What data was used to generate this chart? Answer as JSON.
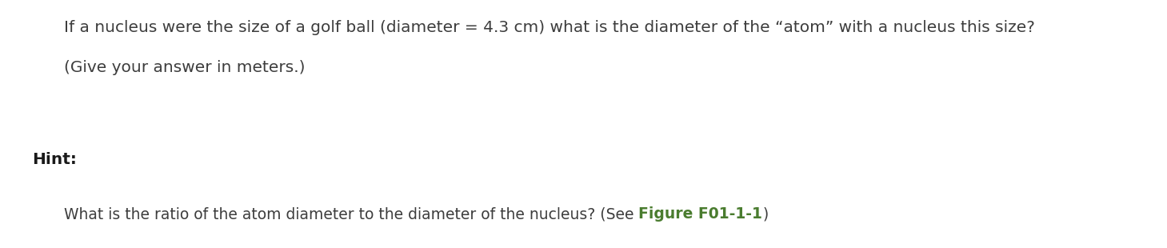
{
  "bg_color": "#ffffff",
  "line1": "If a nucleus were the size of a golf ball (diameter = 4.3 cm) what is the diameter of the “atom” with a nucleus this size?",
  "line2": "(Give your answer in meters.)",
  "hint_label": "Hint:",
  "line3_before": "What is the ratio of the atom diameter to the diameter of the nucleus? (See ",
  "line3_link": "Figure F01-1-1",
  "line3_after": ")",
  "text_color": "#3d3d3d",
  "hint_color": "#1a1a1a",
  "link_color": "#4a7c2f",
  "font_size_main": 14.5,
  "font_size_hint": 14.5,
  "font_size_sub": 13.5,
  "fig_width": 14.59,
  "fig_height": 3.1,
  "dpi": 100
}
